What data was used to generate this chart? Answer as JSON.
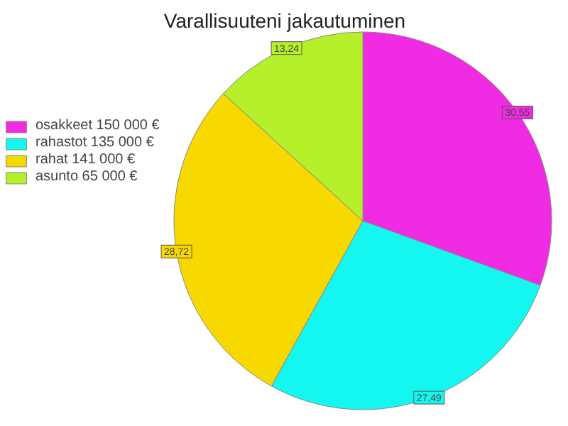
{
  "chart_data": {
    "type": "pie",
    "title": "Varallisuuteni jakautuminen",
    "categories": [
      "osakkeet 150 000 €",
      "rahastot 135 000 €",
      "rahat 141 000 €",
      "asunto 65 000 €"
    ],
    "values": [
      30.55,
      27.49,
      28.72,
      13.24
    ],
    "value_labels": [
      "30,55",
      "27,49",
      "28,72",
      "13,24"
    ],
    "colors": [
      "#f02be3",
      "#14f7f0",
      "#f7d900",
      "#b5f02b"
    ],
    "legend": "top left"
  }
}
